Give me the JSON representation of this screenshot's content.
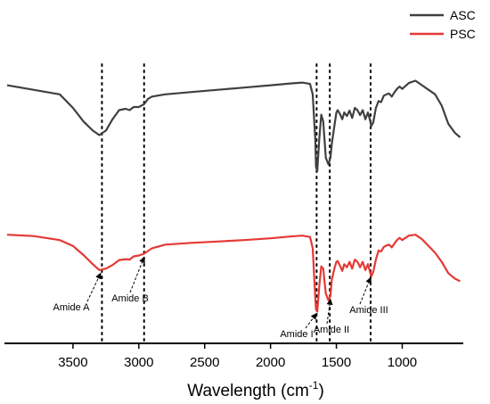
{
  "chart_data": {
    "type": "line",
    "title": "",
    "xlabel": "Wavelength (cm",
    "xlabel_sup": "-1",
    "xlabel_close": ")",
    "ylabel": "",
    "xlim": [
      4000,
      550
    ],
    "x_reversed": true,
    "yticks_shown": false,
    "grid": false,
    "legend_position": "top-right",
    "x_ticks": [
      {
        "value": 3500,
        "label": "3500"
      },
      {
        "value": 3000,
        "label": "3000"
      },
      {
        "value": 2500,
        "label": "2500"
      },
      {
        "value": 2000,
        "label": "2000"
      },
      {
        "value": 1500,
        "label": "1500"
      },
      {
        "value": 1000,
        "label": "1000"
      }
    ],
    "series": [
      {
        "name": "ASC",
        "color": "#404040",
        "x": [
          4000,
          3800,
          3600,
          3500,
          3420,
          3350,
          3300,
          3250,
          3200,
          3150,
          3100,
          3070,
          3040,
          3000,
          2960,
          2930,
          2900,
          2800,
          2600,
          2400,
          2200,
          2000,
          1850,
          1760,
          1700,
          1680,
          1660,
          1655,
          1645,
          1630,
          1615,
          1600,
          1580,
          1560,
          1545,
          1535,
          1515,
          1500,
          1490,
          1470,
          1455,
          1440,
          1420,
          1400,
          1380,
          1360,
          1340,
          1320,
          1300,
          1280,
          1260,
          1245,
          1235,
          1220,
          1200,
          1180,
          1160,
          1140,
          1120,
          1100,
          1080,
          1060,
          1040,
          1020,
          1000,
          950,
          900,
          850,
          800,
          750,
          700,
          650,
          600,
          560
        ],
        "y": [
          72,
          71,
          70,
          67,
          64,
          62,
          61,
          62,
          64.5,
          66.5,
          66.8,
          66.5,
          67.2,
          67.2,
          67.8,
          69,
          69.5,
          70,
          70.5,
          71,
          71.5,
          72,
          72.4,
          72.6,
          72.3,
          70,
          60,
          54,
          53,
          60,
          65.5,
          64,
          56,
          54.5,
          56,
          59,
          63,
          66,
          66.5,
          65.5,
          64.5,
          66,
          65.2,
          66.4,
          64.8,
          67,
          66.5,
          65.4,
          66.5,
          64.5,
          66,
          64.3,
          63,
          63.8,
          67,
          68.5,
          68.3,
          69.7,
          70,
          70.2,
          69.5,
          70.4,
          71.2,
          71.7,
          71.2,
          72.5,
          73,
          72,
          71,
          70,
          67.5,
          63.5,
          61.5,
          60.5
        ]
      },
      {
        "name": "PSC",
        "color": "#e53935",
        "x": [
          4000,
          3800,
          3600,
          3500,
          3420,
          3350,
          3300,
          3250,
          3200,
          3150,
          3100,
          3070,
          3040,
          3000,
          2960,
          2930,
          2900,
          2800,
          2600,
          2400,
          2200,
          2000,
          1850,
          1760,
          1700,
          1680,
          1660,
          1655,
          1645,
          1630,
          1615,
          1600,
          1580,
          1560,
          1545,
          1535,
          1515,
          1500,
          1490,
          1470,
          1455,
          1440,
          1420,
          1400,
          1380,
          1360,
          1340,
          1320,
          1300,
          1280,
          1260,
          1245,
          1235,
          1220,
          1200,
          1180,
          1160,
          1140,
          1120,
          1100,
          1080,
          1060,
          1040,
          1020,
          1000,
          950,
          900,
          850,
          800,
          750,
          700,
          650,
          600,
          560
        ],
        "y": [
          39,
          38.7,
          37.8,
          36.5,
          34.5,
          32.5,
          31.2,
          31.5,
          32.3,
          33.4,
          33.6,
          33.5,
          34.2,
          34.4,
          34.8,
          35.4,
          36,
          36.8,
          37.2,
          37.5,
          37.8,
          38.2,
          38.6,
          38.8,
          38.5,
          36,
          25,
          22.5,
          22,
          27.5,
          32,
          31.5,
          26,
          24.5,
          25.5,
          29,
          31.5,
          33,
          33.2,
          32,
          31,
          32.5,
          31.8,
          33,
          31.5,
          33.5,
          33,
          31.8,
          33,
          31.2,
          32.5,
          30.8,
          29.8,
          30.8,
          33.5,
          35.5,
          35.3,
          36.3,
          36.6,
          36.8,
          36.2,
          37,
          37.8,
          38.3,
          37.8,
          38.8,
          39,
          38,
          36.5,
          35,
          33,
          30.5,
          29.3,
          28.7
        ]
      }
    ],
    "reference_lines": [
      3280,
      2960,
      1650,
      1550,
      1240
    ],
    "annotations": [
      {
        "text": "Amide A",
        "target_x": 3290,
        "series": 1
      },
      {
        "text": "Amide B",
        "target_x": 2960,
        "series": 1
      },
      {
        "text": "Amide I",
        "target_x": 1652,
        "series": 1
      },
      {
        "text": "Amide II",
        "target_x": 1545,
        "series": 1
      },
      {
        "text": "Amide III",
        "target_x": 1240,
        "series": 1
      }
    ]
  }
}
